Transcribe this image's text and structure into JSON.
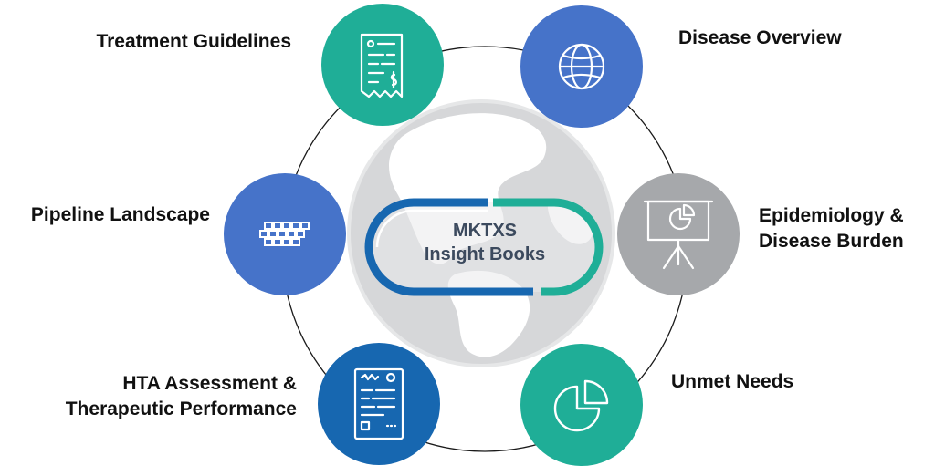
{
  "center": {
    "line1": "MKTXS",
    "line2": "Insight Books"
  },
  "nodes": {
    "treatment_guidelines": {
      "label": "Treatment Guidelines",
      "color": "#1fae97",
      "icon": "receipt-icon"
    },
    "disease_overview": {
      "label": "Disease Overview",
      "color": "#4673c9",
      "icon": "globe-icon"
    },
    "pipeline_landscape": {
      "label": "Pipeline Landscape",
      "color": "#4673c9",
      "icon": "pipeline-blocks-icon"
    },
    "epidemiology": {
      "line1": "Epidemiology &",
      "line2": "Disease Burden",
      "color": "#a6a8ab",
      "icon": "presentation-board-icon"
    },
    "hta_assessment": {
      "line1": "HTA Assessment &",
      "line2": "Therapeutic Performance",
      "color": "#1767b0",
      "icon": "report-document-icon"
    },
    "unmet_needs": {
      "label": "Unmet Needs",
      "color": "#1fae97",
      "icon": "pie-chart-icon"
    }
  },
  "colors": {
    "globe": "#d6d7d9",
    "pill_blue": "#1767b0",
    "pill_teal": "#1fae97",
    "text": "#111111",
    "center_text": "#3c4a5e"
  }
}
